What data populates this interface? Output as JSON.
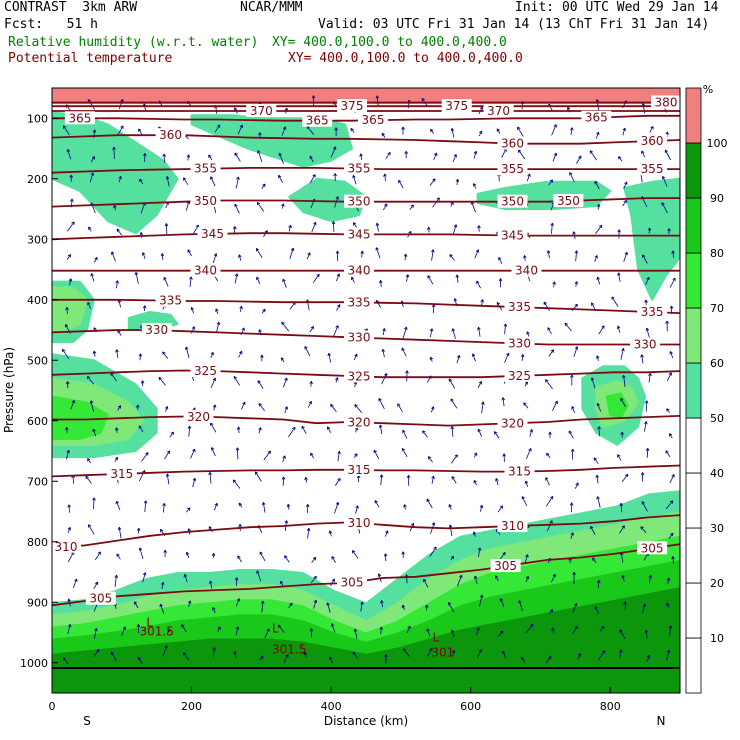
{
  "header": {
    "model": "CONTRAST  3km ARW",
    "org": "NCAR/MMM",
    "init": "Init: 00 UTC Wed 29 Jan 14",
    "fcst": "Fcst:   51 h",
    "valid": "Valid: 03 UTC Fri 31 Jan 14 (13 ChT Fri 31 Jan 14)",
    "field1_name": "Relative humidity (w.r.t. water)",
    "field1_xy": "XY= 400.0,100.0 to 400.0,400.0",
    "field2_name": "Potential temperature",
    "field2_xy": "XY= 400.0,100.0 to 400.0,400.0"
  },
  "colors": {
    "rh_text": "#008000",
    "theta_text": "#800000",
    "theta_line": "#7a0a14",
    "wind_barb": "#00007f",
    "rh50": "#55e0a0",
    "rh60": "#80e878",
    "rh70": "#35e835",
    "rh80": "#1ac81a",
    "rh90": "#0c960c",
    "rh100": "#f08080"
  },
  "chart_data": {
    "type": "heatmap",
    "xlabel": "Distance (km)",
    "ylabel": "Pressure (hPa)",
    "x_ticks": [
      "0",
      "200",
      "400",
      "600",
      "800"
    ],
    "y_ticks": [
      "100",
      "200",
      "300",
      "400",
      "500",
      "600",
      "700",
      "800",
      "900",
      "1000"
    ],
    "xlim": [
      0,
      900
    ],
    "ylim": [
      1050,
      50
    ],
    "endpoints": {
      "left": "S",
      "right": "N"
    },
    "colorbar": {
      "unit": "%",
      "levels": [
        "10",
        "20",
        "30",
        "40",
        "50",
        "60",
        "70",
        "80",
        "90",
        "100"
      ],
      "filled_from": 50
    },
    "theta_contours": [
      {
        "value": 305,
        "label": "305",
        "pressure": [
          905,
          898,
          890,
          886,
          882,
          880,
          878,
          874,
          870,
          868,
          860,
          858,
          852,
          846,
          838,
          830,
          826,
          820,
          812,
          804
        ],
        "label_km": [
          70,
          430,
          650,
          860
        ]
      },
      {
        "value": 310,
        "label": "310",
        "pressure": [
          810,
          806,
          798,
          790,
          784,
          780,
          776,
          774,
          770,
          768,
          772,
          776,
          778,
          776,
          774,
          772,
          770,
          766,
          760,
          756
        ],
        "label_km": [
          20,
          440,
          660
        ]
      },
      {
        "value": 315,
        "label": "315",
        "pressure": [
          692,
          690,
          688,
          686,
          684,
          683,
          682,
          682,
          681,
          681,
          682,
          682,
          683,
          684,
          684,
          683,
          681,
          678,
          676,
          674
        ],
        "label_km": [
          100,
          440,
          670
        ]
      },
      {
        "value": 320,
        "label": "320",
        "pressure": [
          598,
          598,
          596,
          594,
          593,
          594,
          596,
          598,
          604,
          602,
          604,
          606,
          608,
          606,
          604,
          602,
          598,
          596,
          594,
          592
        ],
        "label_km": [
          210,
          440,
          660
        ]
      },
      {
        "value": 325,
        "label": "325",
        "pressure": [
          524,
          522,
          520,
          518,
          517,
          518,
          520,
          522,
          524,
          526,
          528,
          528,
          528,
          528,
          526,
          524,
          522,
          520,
          520,
          518
        ],
        "label_km": [
          220,
          440,
          670
        ]
      },
      {
        "value": 330,
        "label": "330",
        "pressure": [
          454,
          452,
          450,
          450,
          452,
          454,
          456,
          458,
          460,
          462,
          464,
          466,
          468,
          470,
          472,
          474,
          474,
          474,
          474,
          474
        ],
        "label_km": [
          150,
          440,
          670,
          850
        ]
      },
      {
        "value": 335,
        "label": "335",
        "pressure": [
          400,
          400,
          400,
          401,
          402,
          402,
          403,
          404,
          404,
          404,
          405,
          406,
          408,
          410,
          412,
          414,
          416,
          418,
          420,
          422
        ],
        "label_km": [
          170,
          440,
          670,
          860
        ]
      },
      {
        "value": 340,
        "label": "340",
        "pressure": [
          352,
          352,
          352,
          352,
          352,
          352,
          352,
          352,
          352,
          352,
          352,
          352,
          352,
          352,
          352,
          352,
          352,
          352,
          352,
          352
        ],
        "label_km": [
          220,
          440,
          680
        ]
      },
      {
        "value": 345,
        "label": "345",
        "pressure": [
          300,
          298,
          296,
          294,
          292,
          291,
          290,
          290,
          291,
          292,
          292,
          292,
          292,
          293,
          294,
          294,
          294,
          294,
          294,
          294
        ],
        "label_km": [
          230,
          440,
          660
        ]
      },
      {
        "value": 350,
        "label": "350",
        "pressure": [
          246,
          244,
          242,
          240,
          238,
          236,
          236,
          236,
          237,
          238,
          238,
          238,
          238,
          238,
          238,
          238,
          236,
          234,
          232,
          232
        ],
        "label_km": [
          220,
          440,
          660,
          740
        ]
      },
      {
        "value": 355,
        "label": "355",
        "pressure": [
          190,
          188,
          186,
          185,
          184,
          183,
          182,
          182,
          182,
          183,
          184,
          184,
          184,
          184,
          184,
          184,
          184,
          184,
          184,
          184
        ],
        "label_km": [
          220,
          440,
          660,
          860
        ]
      },
      {
        "value": 360,
        "label": "360",
        "pressure": [
          132,
          130,
          128,
          128,
          128,
          130,
          132,
          133,
          134,
          134,
          135,
          136,
          138,
          140,
          142,
          142,
          142,
          140,
          138,
          136
        ],
        "label_km": [
          170,
          660,
          860
        ]
      },
      {
        "value": 365,
        "label": "365",
        "pressure": [
          100,
          100,
          100,
          101,
          102,
          102,
          103,
          104,
          104,
          104,
          103,
          102,
          102,
          101,
          100,
          100,
          100,
          98,
          96,
          96
        ],
        "label_km": [
          40,
          380,
          460,
          780
        ]
      },
      {
        "value": 370,
        "label": "370",
        "pressure": [
          88,
          88,
          88,
          88,
          88,
          88,
          88,
          88,
          88,
          88,
          88,
          88,
          88,
          88,
          88,
          88,
          88,
          88,
          88,
          88
        ],
        "label_km": [
          300,
          640
        ]
      },
      {
        "value": 375,
        "label": "375",
        "pressure": [
          80,
          80,
          80,
          80,
          80,
          80,
          80,
          80,
          80,
          80,
          80,
          80,
          80,
          80,
          80,
          80,
          80,
          80,
          80,
          80
        ],
        "label_km": [
          430,
          580
        ]
      },
      {
        "value": 380,
        "label": "380",
        "pressure": [
          74,
          74,
          74,
          74,
          74,
          74,
          74,
          74,
          74,
          74,
          74,
          74,
          74,
          74,
          74,
          74,
          74,
          74,
          74,
          74
        ],
        "label_km": [
          880
        ]
      }
    ],
    "rh_regions": [
      {
        "level": 100,
        "km": [
          0,
          900
        ],
        "p": [
          50,
          75
        ]
      },
      {
        "level": 50,
        "km": [
          0,
          40,
          80,
          120,
          160,
          180,
          150,
          120,
          80,
          40,
          0
        ],
        "p": [
          90,
          95,
          110,
          140,
          170,
          200,
          260,
          290,
          270,
          220,
          200
        ]
      },
      {
        "level": 50,
        "km": [
          200,
          260,
          300,
          340,
          380,
          420,
          430,
          400,
          360,
          320,
          280,
          240,
          200
        ],
        "p": [
          95,
          95,
          100,
          100,
          100,
          110,
          150,
          170,
          180,
          165,
          150,
          130,
          110
        ]
      },
      {
        "level": 50,
        "km": [
          380,
          420,
          450,
          440,
          400,
          360,
          340
        ],
        "p": [
          200,
          205,
          230,
          260,
          270,
          255,
          230
        ]
      },
      {
        "level": 50,
        "km": [
          610,
          650,
          710,
          780,
          800,
          780,
          720,
          650,
          610
        ],
        "p": [
          225,
          215,
          205,
          205,
          220,
          245,
          250,
          250,
          240
        ]
      },
      {
        "level": 50,
        "km": [
          820,
          860,
          900,
          900,
          880,
          860,
          840,
          830
        ],
        "p": [
          215,
          205,
          200,
          330,
          360,
          400,
          350,
          260
        ]
      },
      {
        "level": 50,
        "km": [
          0,
          40,
          60,
          50,
          30,
          0
        ],
        "p": [
          370,
          370,
          400,
          450,
          470,
          470
        ]
      },
      {
        "level": 60,
        "km": [
          0,
          30,
          50,
          40,
          20,
          0
        ],
        "p": [
          380,
          380,
          400,
          440,
          450,
          450
        ]
      },
      {
        "level": 50,
        "km": [
          110,
          140,
          170,
          180,
          150,
          110
        ],
        "p": [
          430,
          420,
          425,
          440,
          450,
          450
        ]
      },
      {
        "level": 50,
        "km": [
          0,
          60,
          120,
          150,
          150,
          120,
          60,
          0
        ],
        "p": [
          490,
          500,
          540,
          580,
          620,
          650,
          660,
          660
        ]
      },
      {
        "level": 60,
        "km": [
          0,
          60,
          110,
          130,
          110,
          60,
          0
        ],
        "p": [
          530,
          540,
          570,
          600,
          630,
          640,
          640
        ]
      },
      {
        "level": 70,
        "km": [
          0,
          50,
          80,
          70,
          40,
          0
        ],
        "p": [
          560,
          570,
          590,
          620,
          630,
          630
        ]
      },
      {
        "level": 50,
        "km": [
          760,
          790,
          820,
          840,
          850,
          840,
          810,
          780,
          760
        ],
        "p": [
          530,
          510,
          510,
          530,
          560,
          610,
          640,
          620,
          580
        ]
      },
      {
        "level": 60,
        "km": [
          780,
          810,
          830,
          840,
          820,
          790,
          780
        ],
        "p": [
          545,
          535,
          545,
          570,
          600,
          610,
          580
        ]
      },
      {
        "level": 70,
        "km": [
          795,
          815,
          825,
          815,
          800
        ],
        "p": [
          560,
          555,
          575,
          595,
          590
        ]
      }
    ],
    "rh_surface_bands": [
      {
        "level": 50,
        "top": [
          900,
          895,
          880,
          860,
          850,
          850,
          845,
          845,
          850,
          880,
          900,
          860,
          820,
          790,
          780,
          770,
          760,
          750,
          740,
          720,
          715
        ]
      },
      {
        "level": 60,
        "top": [
          920,
          915,
          905,
          890,
          880,
          875,
          870,
          870,
          880,
          905,
          930,
          900,
          860,
          830,
          810,
          800,
          790,
          780,
          770,
          760,
          750
        ]
      },
      {
        "level": 70,
        "top": [
          940,
          935,
          925,
          915,
          905,
          900,
          895,
          895,
          905,
          930,
          950,
          930,
          900,
          870,
          850,
          840,
          830,
          820,
          810,
          800,
          790
        ]
      },
      {
        "level": 80,
        "top": [
          960,
          955,
          948,
          940,
          930,
          925,
          920,
          920,
          930,
          950,
          965,
          950,
          930,
          905,
          890,
          880,
          870,
          860,
          850,
          840,
          830
        ]
      },
      {
        "level": 90,
        "top": [
          985,
          980,
          975,
          970,
          965,
          960,
          960,
          960,
          965,
          975,
          985,
          975,
          960,
          945,
          935,
          925,
          915,
          905,
          895,
          885,
          875
        ]
      }
    ],
    "annotations": [
      {
        "text": "301.5",
        "km": 150,
        "p": 955,
        "color": "#800000"
      },
      {
        "text": "301.5",
        "km": 340,
        "p": 985,
        "color": "#800000"
      },
      {
        "text": "301",
        "km": 560,
        "p": 990,
        "color": "#800000"
      },
      {
        "text": "L",
        "km": 140,
        "p": 940,
        "color": "#800000"
      },
      {
        "text": "L",
        "km": 320,
        "p": 950,
        "color": "#800000"
      },
      {
        "text": "L",
        "km": 550,
        "p": 965,
        "color": "#800000"
      }
    ]
  }
}
